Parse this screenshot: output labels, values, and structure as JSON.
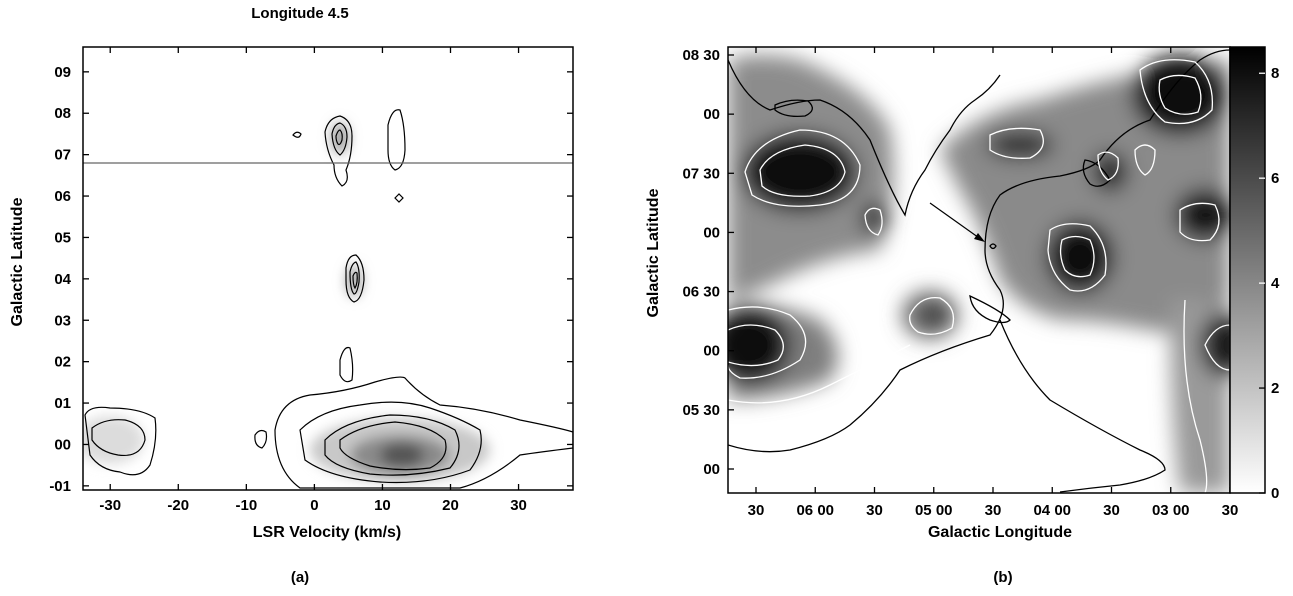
{
  "chart_data": [
    {
      "panel": "(a)",
      "type": "contour",
      "title": "Longitude 4.5",
      "xlabel": "LSR Velocity (km/s)",
      "ylabel": "Galactic Latitude",
      "x_ticks": [
        "-30",
        "-20",
        "-10",
        "0",
        "10",
        "20",
        "30"
      ],
      "y_ticks": [
        "-01",
        "00",
        "01",
        "02",
        "03",
        "04",
        "05",
        "06",
        "07",
        "08",
        "09"
      ],
      "xlim": [
        -34,
        38
      ],
      "ylim": [
        -1.1,
        9.6
      ],
      "reference_line_latitude": 6.8,
      "features": [
        {
          "x": 4,
          "y": 7.5,
          "peak": 4
        },
        {
          "x": 6,
          "y": 4.0,
          "peak": 4
        },
        {
          "x": 5,
          "y": 2.0,
          "peak": 2
        },
        {
          "x": 13,
          "y": -0.2,
          "peak": 8
        },
        {
          "x": 13,
          "y": 7.5,
          "peak": 1
        },
        {
          "x": -28,
          "y": 0.2,
          "peak": 1
        },
        {
          "x": -3,
          "y": 7.5,
          "peak": 1
        }
      ]
    },
    {
      "panel": "(b)",
      "type": "heatmap",
      "xlabel": "Galactic Longitude",
      "ylabel": "Galactic Latitude",
      "x_ticks": [
        "30",
        "06 00",
        "30",
        "05 00",
        "30",
        "04 00",
        "30",
        "03 00",
        "30"
      ],
      "y_ticks": [
        "08 30",
        "00",
        "07 30",
        "00",
        "06 30",
        "00",
        "05 30",
        "00"
      ],
      "colorbar_ticks": [
        "0",
        "2",
        "4",
        "6",
        "8"
      ],
      "colorbar_range": [
        0,
        8.5
      ],
      "colormap": "white-to-black",
      "features": [
        {
          "lon": "06 05",
          "lat": "07 25",
          "peak": 8
        },
        {
          "lon": "06 40",
          "lat": "06 00",
          "peak": 8
        },
        {
          "lon": "03 55",
          "lat": "06 45",
          "peak": 7
        },
        {
          "lon": "04 55",
          "lat": "06 15",
          "peak": 5
        },
        {
          "lon": "03 15",
          "lat": "08 15",
          "peak": 8
        },
        {
          "lon": "02 35",
          "lat": "06 00",
          "peak": 7
        }
      ]
    }
  ],
  "captions": {
    "a": "(a)",
    "b": "(b)"
  }
}
